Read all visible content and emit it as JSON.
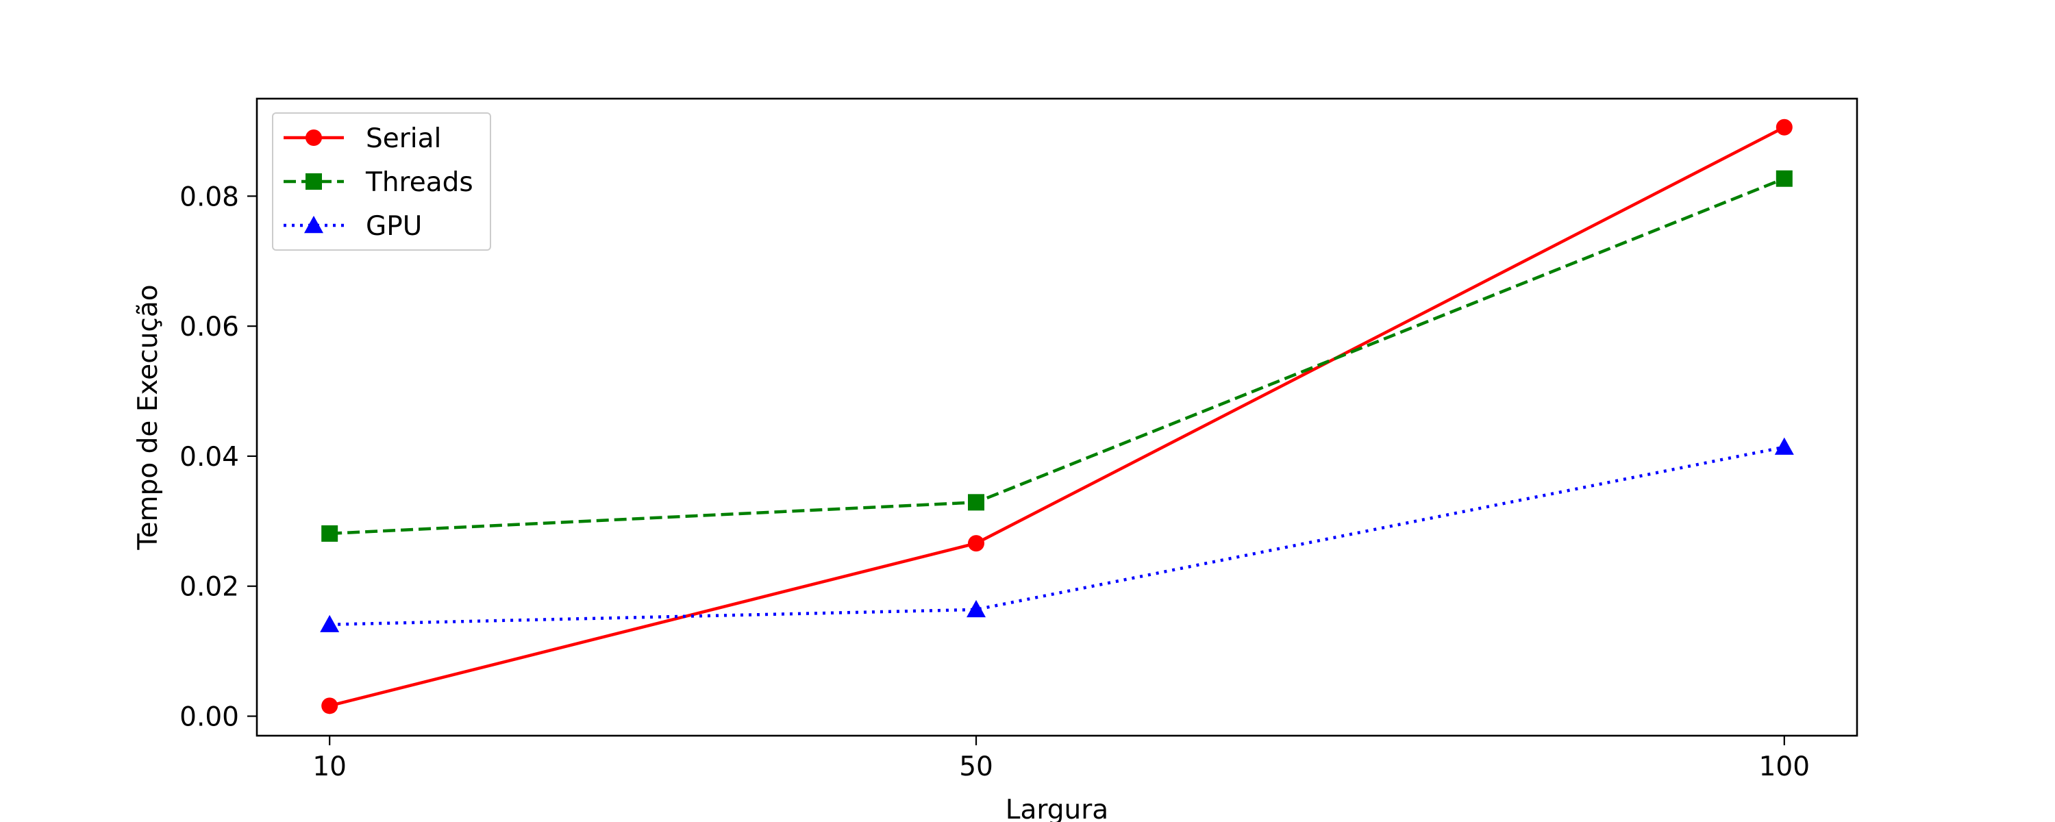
{
  "chart_data": {
    "type": "line",
    "title": "",
    "xlabel": "Largura",
    "ylabel": "Tempo de Execução",
    "x": [
      10,
      50,
      100
    ],
    "xticks": [
      "10",
      "50",
      "100"
    ],
    "yticks": [
      "0.00",
      "0.02",
      "0.04",
      "0.06",
      "0.08"
    ],
    "ylim": [
      -0.003,
      0.095
    ],
    "grid": false,
    "legend_position": "upper-left",
    "series": [
      {
        "name": "Serial",
        "values": [
          0.0016,
          0.0266,
          0.0906
        ],
        "color": "#ff0000",
        "line_style": "solid",
        "marker": "circle"
      },
      {
        "name": "Threads",
        "values": [
          0.0281,
          0.0329,
          0.0827
        ],
        "color": "#008000",
        "line_style": "dashed",
        "marker": "square"
      },
      {
        "name": "GPU",
        "values": [
          0.0141,
          0.0164,
          0.0414
        ],
        "color": "#0000ff",
        "line_style": "dotted",
        "marker": "triangle"
      }
    ]
  }
}
